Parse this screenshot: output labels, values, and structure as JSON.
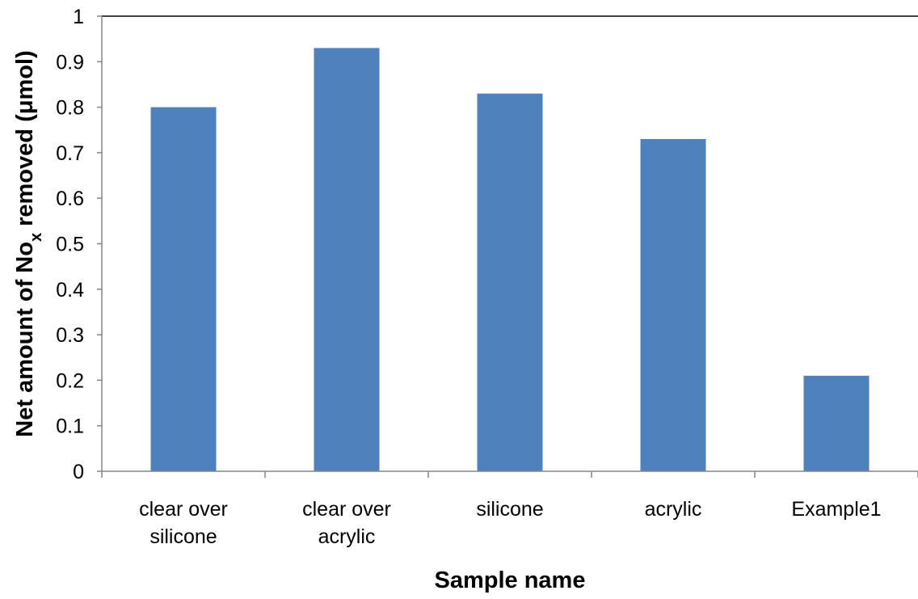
{
  "chart_data": {
    "type": "bar",
    "categories": [
      [
        "clear over",
        "silicone"
      ],
      [
        "clear over",
        "acrylic"
      ],
      [
        "silicone"
      ],
      [
        "acrylic"
      ],
      [
        "Example1"
      ]
    ],
    "values": [
      0.8,
      0.93,
      0.83,
      0.73,
      0.21
    ],
    "title": "",
    "xlabel": "Sample name",
    "ylabel": {
      "before": "Net amount of No",
      "subscript": "x",
      "after": " removed (μmol)"
    },
    "ylim": [
      0,
      1
    ],
    "yticks": [
      "0",
      "0.1",
      "0.2",
      "0.3",
      "0.4",
      "0.5",
      "0.6",
      "0.7",
      "0.8",
      "0.9",
      "1"
    ],
    "grid": false,
    "legend": "none",
    "colors": {
      "bar": "#4F81BD",
      "axis": "#868686",
      "frame": "#000000"
    }
  }
}
